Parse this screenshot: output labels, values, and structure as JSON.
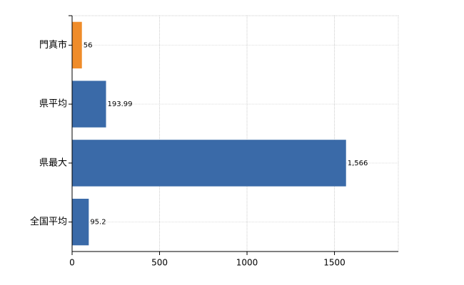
{
  "chart_data": {
    "type": "bar",
    "orientation": "horizontal",
    "categories": [
      "門真市",
      "県平均",
      "県最大",
      "全国平均"
    ],
    "values": [
      56,
      193.99,
      1566,
      95.2
    ],
    "value_labels": [
      "56",
      "193.99",
      "1,566",
      "95.2"
    ],
    "colors": [
      "#ef8c2a",
      "#3a6aa8",
      "#3a6aa8",
      "#3a6aa8"
    ],
    "xlim": [
      0,
      1865
    ],
    "xticks": [
      0,
      500,
      1000,
      1500
    ],
    "grid": true
  }
}
